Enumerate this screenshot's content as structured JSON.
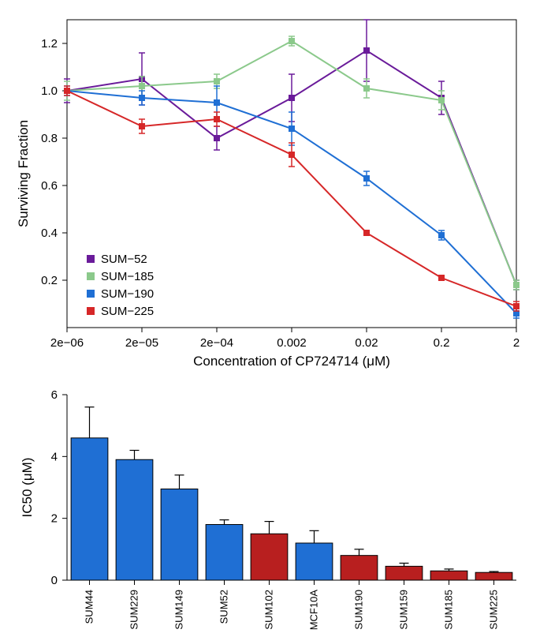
{
  "line_chart": {
    "type": "line",
    "xlabel": "Concentration of CP724714 (μM)",
    "ylabel": "Surviving Fraction",
    "label_fontsize": 17,
    "tick_fontsize": 15,
    "xticks": [
      "2e−06",
      "2e−05",
      "2e−04",
      "0.002",
      "0.02",
      "0.2",
      "2"
    ],
    "yticks": [
      0.2,
      0.4,
      0.6,
      0.8,
      1.0,
      1.2
    ],
    "ylim": [
      0.0,
      1.3
    ],
    "background_color": "#ffffff",
    "axis_color": "#000000",
    "series": [
      {
        "name": "SUM−52",
        "color": "#6a1b9a",
        "marker": "square",
        "y": [
          1.0,
          1.05,
          0.8,
          0.97,
          1.17,
          0.97,
          0.18
        ],
        "err": [
          0.05,
          0.11,
          0.05,
          0.1,
          0.13,
          0.07,
          0.02
        ]
      },
      {
        "name": "SUM−185",
        "color": "#8bc98b",
        "marker": "square",
        "y": [
          1.0,
          1.02,
          1.04,
          1.21,
          1.01,
          0.96,
          0.18
        ],
        "err": [
          0.04,
          0.04,
          0.03,
          0.02,
          0.04,
          0.04,
          0.02
        ]
      },
      {
        "name": "SUM−190",
        "color": "#1f6fd4",
        "marker": "square",
        "y": [
          1.0,
          0.97,
          0.95,
          0.84,
          0.63,
          0.39,
          0.06
        ],
        "err": [
          0.02,
          0.03,
          0.07,
          0.07,
          0.03,
          0.02,
          0.02
        ]
      },
      {
        "name": "SUM−225",
        "color": "#d62728",
        "marker": "square",
        "y": [
          1.0,
          0.85,
          0.88,
          0.73,
          0.4,
          0.21,
          0.09
        ],
        "err": [
          0.02,
          0.03,
          0.03,
          0.05,
          0.01,
          0.01,
          0.02
        ]
      }
    ],
    "legend_position": "lower-left"
  },
  "bar_chart": {
    "type": "bar",
    "ylabel": "IC50 (μM)",
    "label_fontsize": 17,
    "tick_fontsize": 15,
    "ylim": [
      0,
      6
    ],
    "yticks": [
      0,
      2,
      4,
      6
    ],
    "background_color": "#ffffff",
    "axis_color": "#000000",
    "bar_border": "#000000",
    "colors": {
      "blue": "#1f6fd4",
      "red": "#b81f1f"
    },
    "bars": [
      {
        "label": "SUM44",
        "value": 4.6,
        "err": 1.0,
        "color": "#1f6fd4"
      },
      {
        "label": "SUM229",
        "value": 3.9,
        "err": 0.3,
        "color": "#1f6fd4"
      },
      {
        "label": "SUM149",
        "value": 2.95,
        "err": 0.45,
        "color": "#1f6fd4"
      },
      {
        "label": "SUM52",
        "value": 1.8,
        "err": 0.15,
        "color": "#1f6fd4"
      },
      {
        "label": "SUM102",
        "value": 1.5,
        "err": 0.4,
        "color": "#b81f1f"
      },
      {
        "label": "MCF10A",
        "value": 1.2,
        "err": 0.4,
        "color": "#1f6fd4"
      },
      {
        "label": "SUM190",
        "value": 0.8,
        "err": 0.2,
        "color": "#b81f1f"
      },
      {
        "label": "SUM159",
        "value": 0.45,
        "err": 0.1,
        "color": "#b81f1f"
      },
      {
        "label": "SUM185",
        "value": 0.3,
        "err": 0.06,
        "color": "#b81f1f"
      },
      {
        "label": "SUM225",
        "value": 0.25,
        "err": 0.03,
        "color": "#b81f1f"
      }
    ]
  }
}
